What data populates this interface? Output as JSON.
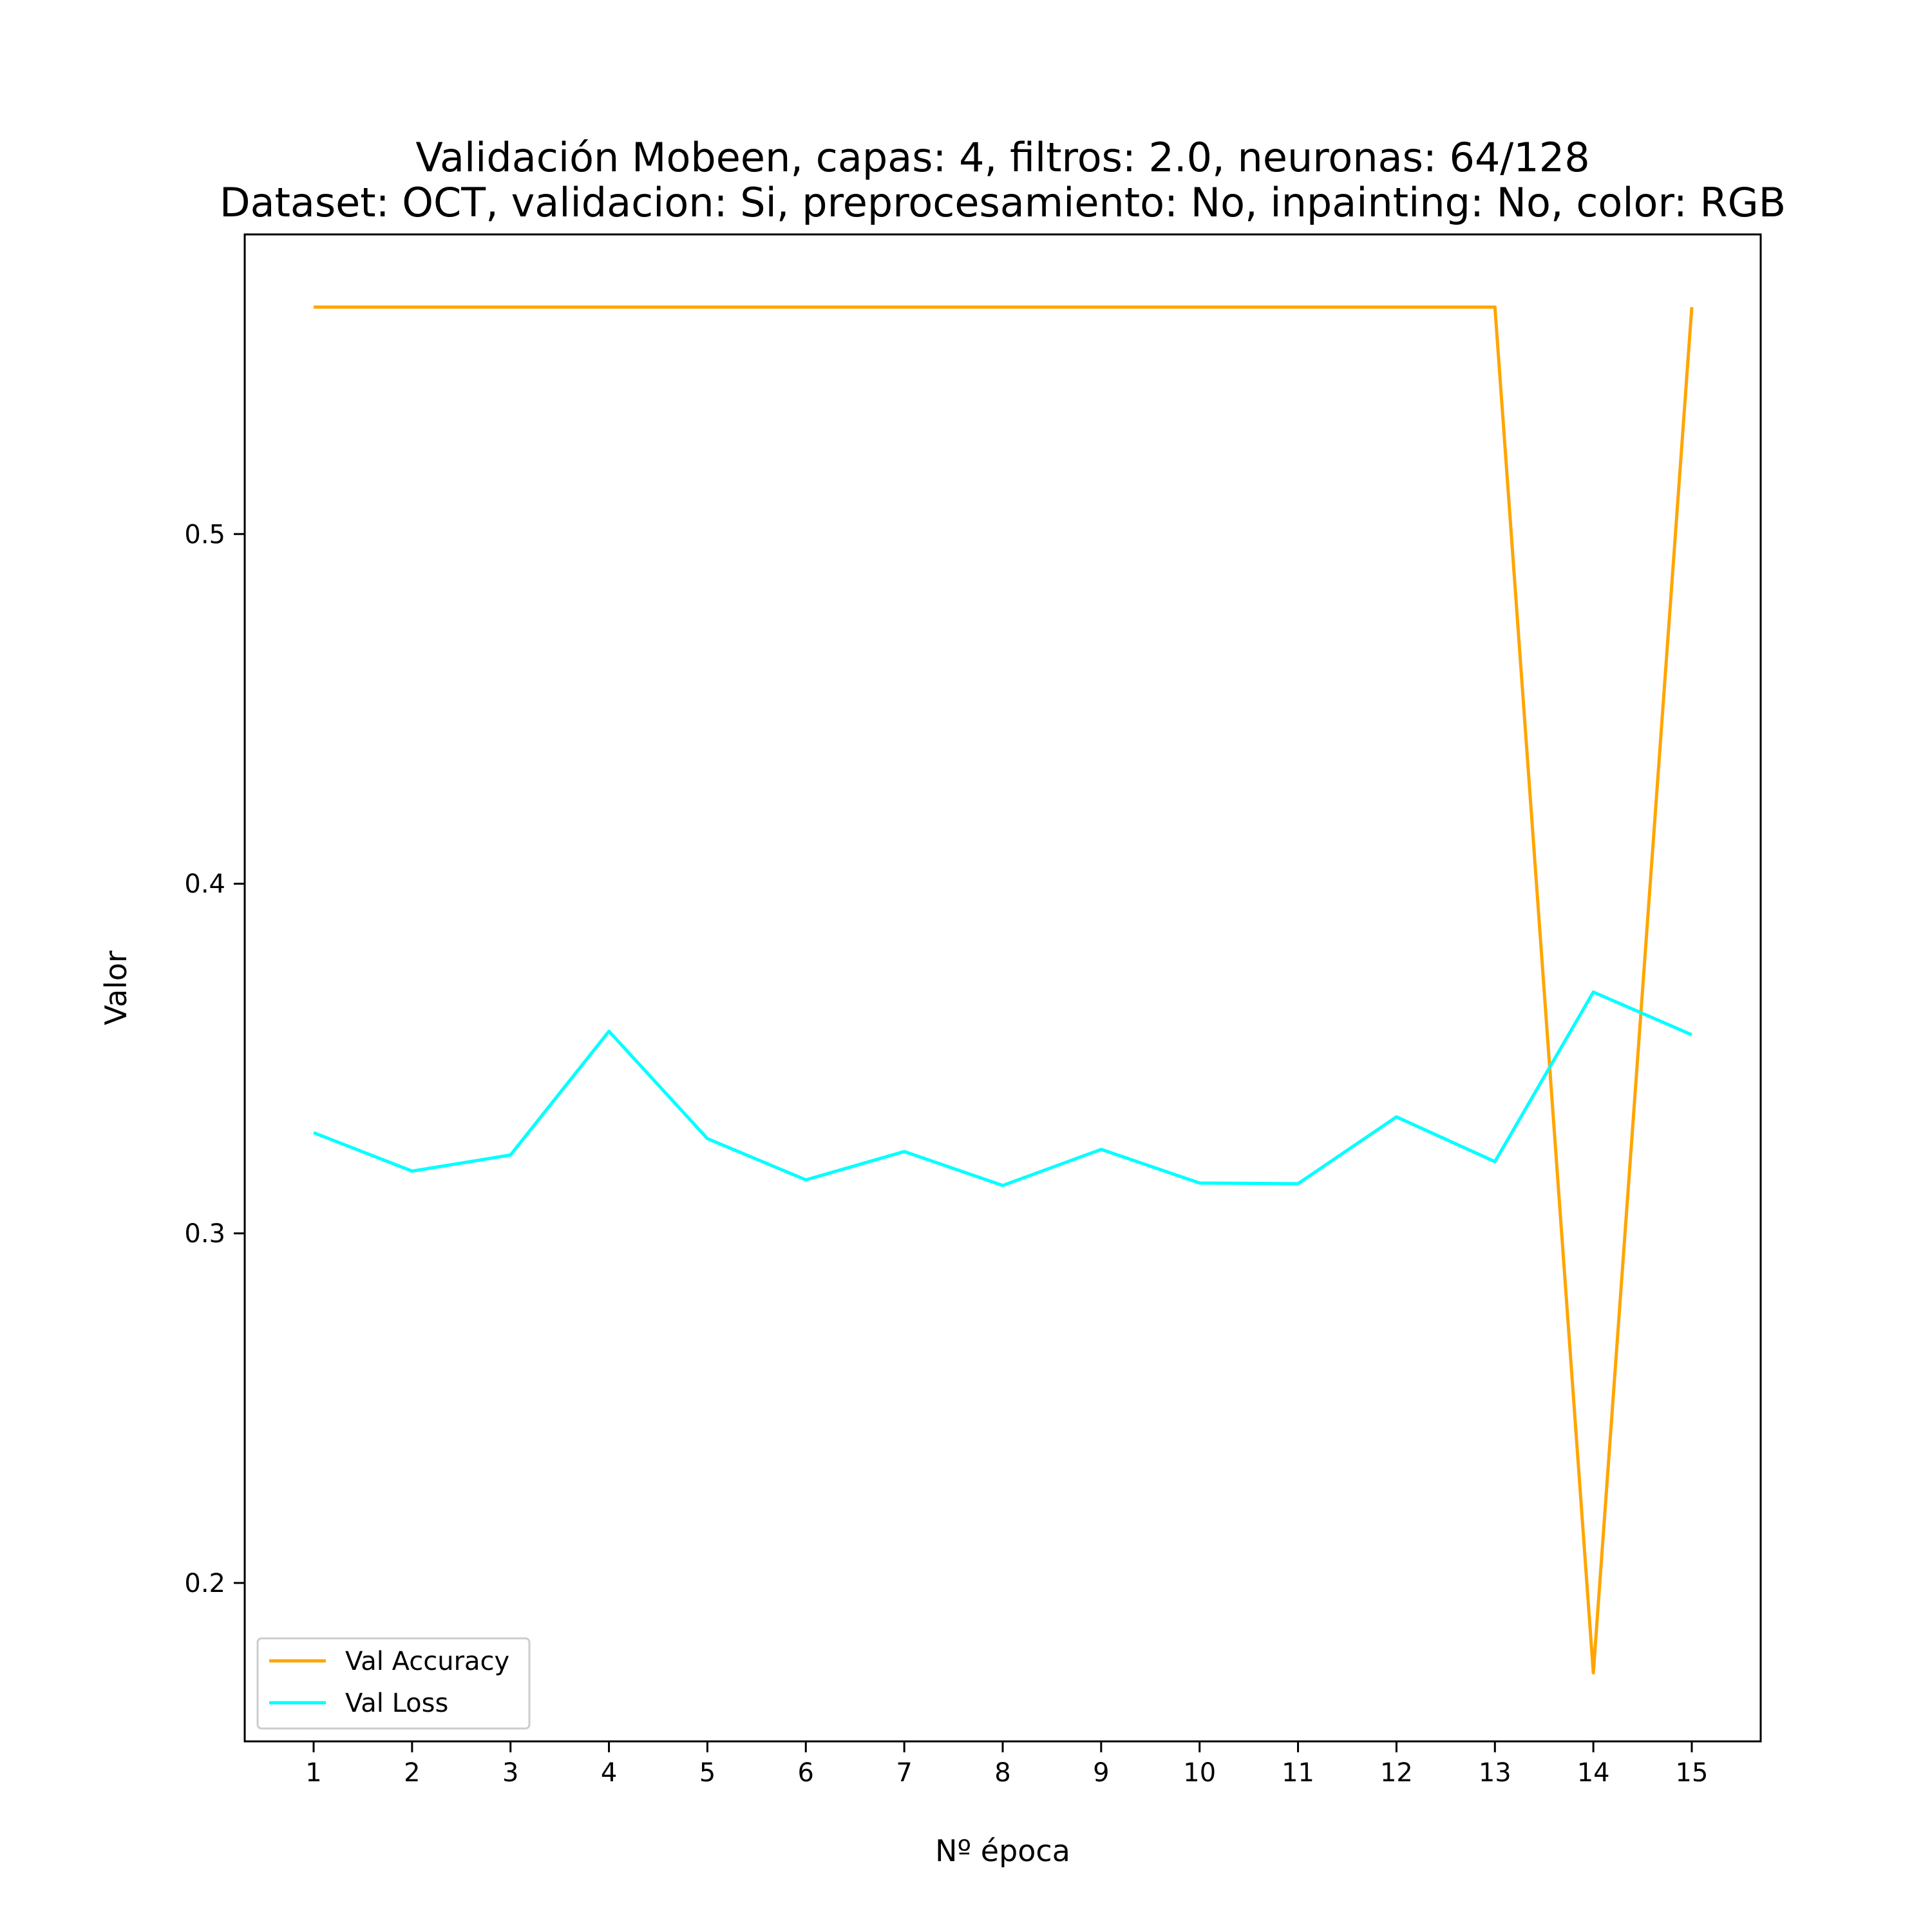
{
  "chart_data": {
    "type": "line",
    "title": "Validación Mobeen, capas: 4, filtros: 2.0, neuronas: 64/128",
    "subtitle": "Dataset: OCT, validacion: Si, preprocesamiento: No, inpainting: No, color: RGB",
    "xlabel": "Nº época",
    "ylabel": "Valor",
    "x": [
      1,
      2,
      3,
      4,
      5,
      6,
      7,
      8,
      9,
      10,
      11,
      12,
      13,
      14,
      15
    ],
    "xticks": [
      "1",
      "2",
      "3",
      "4",
      "5",
      "6",
      "7",
      "8",
      "9",
      "10",
      "11",
      "12",
      "13",
      "14",
      "15"
    ],
    "yticks": [
      {
        "value": 0.2,
        "label": "0.2"
      },
      {
        "value": 0.3,
        "label": "0.3"
      },
      {
        "value": 0.4,
        "label": "0.4"
      },
      {
        "value": 0.5,
        "label": "0.5"
      }
    ],
    "xlim": [
      0.3,
      15.7
    ],
    "ylim": [
      0.1547,
      0.5857
    ],
    "grid": false,
    "legend_position": "lower-left",
    "series": [
      {
        "name": "Val Accuracy",
        "color": "#ffa500",
        "values": [
          0.5649,
          0.5649,
          0.5649,
          0.5649,
          0.5649,
          0.5649,
          0.5649,
          0.5649,
          0.5649,
          0.5649,
          0.5649,
          0.5649,
          0.5649,
          0.1743,
          0.5649
        ]
      },
      {
        "name": "Val Loss",
        "color": "#00ffff",
        "values": [
          0.3288,
          0.3178,
          0.3224,
          0.3578,
          0.3271,
          0.3153,
          0.3234,
          0.3137,
          0.324,
          0.3144,
          0.3142,
          0.3333,
          0.3205,
          0.369,
          0.3568
        ]
      }
    ]
  }
}
